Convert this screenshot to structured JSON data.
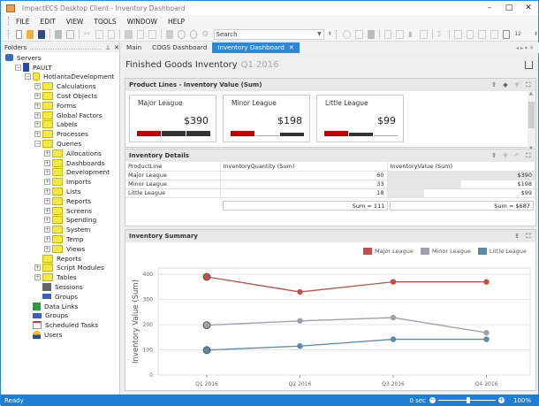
{
  "window": {
    "title": "ImpactECS Desktop Client - Inventory Dashboard",
    "controls": {
      "minimize": "–",
      "maximize": "□",
      "close": "✕"
    }
  },
  "menu": [
    "FILE",
    "EDIT",
    "VIEW",
    "TOOLS",
    "WINDOW",
    "HELP"
  ],
  "toolbar": {
    "search_placeholder": "Search",
    "icons": [
      "new-icon",
      "open-folder-icon",
      "save-icon",
      "print-icon",
      "print-preview-icon",
      "cut-icon",
      "copy-icon",
      "paste-icon",
      "import-icon",
      "export-icon",
      "export-alt-icon",
      "grid-icon",
      "play-icon",
      "stop-icon",
      "gear-icon"
    ],
    "right_icons": [
      "refresh-icon",
      "validate-icon",
      "run-icon",
      "tree-icon",
      "table-icon",
      "bar-chart-icon",
      "window-icon",
      "sum-icon",
      "query-icon",
      "datasource-icon",
      "copy-window-icon",
      "paste-window-icon",
      "layout-icon",
      "number-icon"
    ],
    "right_text": "12"
  },
  "folders": {
    "title": "Folders",
    "tree": [
      {
        "label": "Servers",
        "level": 0,
        "icon": "servers-icon",
        "exp": ""
      },
      {
        "label": "PAULT",
        "level": 1,
        "icon": "server-icon",
        "exp": "-"
      },
      {
        "label": "HotlantaDevelopment",
        "level": 2,
        "icon": "database-icon",
        "exp": "-"
      },
      {
        "label": "Calculations",
        "level": 3,
        "icon": "folder-icon",
        "exp": "+"
      },
      {
        "label": "Cost Objects",
        "level": 3,
        "icon": "folder-icon",
        "exp": "+"
      },
      {
        "label": "Forms",
        "level": 3,
        "icon": "folder-icon",
        "exp": "+"
      },
      {
        "label": "Global Factors",
        "level": 3,
        "icon": "folder-icon",
        "exp": "+"
      },
      {
        "label": "Labels",
        "level": 3,
        "icon": "folder-icon",
        "exp": "+"
      },
      {
        "label": "Processes",
        "level": 3,
        "icon": "folder-icon",
        "exp": "+"
      },
      {
        "label": "Queries",
        "level": 3,
        "icon": "folder-icon",
        "exp": "-"
      },
      {
        "label": "Allocations",
        "level": 4,
        "icon": "folder-icon",
        "exp": "+"
      },
      {
        "label": "Dashboards",
        "level": 4,
        "icon": "folder-icon",
        "exp": "+"
      },
      {
        "label": "Development",
        "level": 4,
        "icon": "folder-icon",
        "exp": "+"
      },
      {
        "label": "Imports",
        "level": 4,
        "icon": "folder-icon",
        "exp": "+"
      },
      {
        "label": "Lists",
        "level": 4,
        "icon": "folder-icon",
        "exp": "+"
      },
      {
        "label": "Reports",
        "level": 4,
        "icon": "folder-icon",
        "exp": "+"
      },
      {
        "label": "Screens",
        "level": 4,
        "icon": "folder-icon",
        "exp": "+"
      },
      {
        "label": "Spending",
        "level": 4,
        "icon": "folder-icon",
        "exp": "+"
      },
      {
        "label": "System",
        "level": 4,
        "icon": "folder-icon",
        "exp": "+"
      },
      {
        "label": "Temp",
        "level": 4,
        "icon": "folder-icon",
        "exp": "+"
      },
      {
        "label": "Views",
        "level": 4,
        "icon": "folder-icon",
        "exp": "+"
      },
      {
        "label": "Reports",
        "level": 3,
        "icon": "folder-icon",
        "exp": ""
      },
      {
        "label": "Script Modules",
        "level": 3,
        "icon": "folder-icon",
        "exp": "+"
      },
      {
        "label": "Tables",
        "level": 3,
        "icon": "folder-icon",
        "exp": "+"
      },
      {
        "label": "Sessions",
        "level": 3,
        "icon": "sessions-icon",
        "exp": ""
      },
      {
        "label": "Groups",
        "level": 3,
        "icon": "groups-icon",
        "exp": ""
      },
      {
        "label": "Data Links",
        "level": 2,
        "icon": "data-links-icon",
        "exp": ""
      },
      {
        "label": "Groups",
        "level": 2,
        "icon": "groups-icon",
        "exp": ""
      },
      {
        "label": "Scheduled Tasks",
        "level": 2,
        "icon": "scheduled-tasks-icon",
        "exp": ""
      },
      {
        "label": "Users",
        "level": 2,
        "icon": "users-icon",
        "exp": ""
      }
    ]
  },
  "tabs": [
    {
      "label": "Main",
      "active": false
    },
    {
      "label": "COGS Dashboard",
      "active": false
    },
    {
      "label": "Inventory Dashboard",
      "active": true
    }
  ],
  "dashboard": {
    "title": "Finished Goods Inventory",
    "period": "Q1 2016",
    "product_lines": {
      "title": "Product Lines - Inventory Value (Sum)",
      "cards": [
        {
          "name": "Major League",
          "value": "$390"
        },
        {
          "name": "Minor League",
          "value": "$198"
        },
        {
          "name": "Little League",
          "value": "$99"
        }
      ]
    },
    "details": {
      "title": "Inventory Details",
      "columns": [
        "ProductLine",
        "InventoryQuantity (Sum)",
        "InventoryValue (Sum)"
      ],
      "rows": [
        {
          "line": "Major League",
          "qty": "60",
          "value": "$390"
        },
        {
          "line": "Minor League",
          "qty": "33",
          "value": "$198"
        },
        {
          "line": "Little League",
          "qty": "18",
          "value": "$99"
        }
      ],
      "sum_qty": "Sum = 111",
      "sum_value": "Sum = $687"
    },
    "summary": {
      "title": "Inventory Summary"
    }
  },
  "chart_data": {
    "type": "line",
    "title": "Inventory Summary",
    "categories": [
      "Q1 2016",
      "Q2 2016",
      "Q3 2016",
      "Q4 2016"
    ],
    "series": [
      {
        "name": "Major League",
        "color": "#c0504d",
        "values": [
          390,
          330,
          370,
          370
        ]
      },
      {
        "name": "Minor League",
        "color": "#a0a0a8",
        "values": [
          198,
          215,
          228,
          168
        ]
      },
      {
        "name": "Little League",
        "color": "#5a8aa6",
        "values": [
          99,
          115,
          142,
          142
        ]
      }
    ],
    "xlabel": "",
    "ylabel": "Inventory Value (Sum)",
    "yticks": [
      0,
      100,
      200,
      300,
      400
    ],
    "ylim": [
      0,
      425
    ],
    "grid": true,
    "legend_position": "top-right"
  },
  "status": {
    "text": "Ready",
    "time": "0 sec",
    "zoom": "100%"
  },
  "colors": {
    "accent": "#2b88d8",
    "status_bar": "#1c7fd3",
    "bar_red": "#c00000",
    "bar_dark": "#333333",
    "bar_orange": "#e8a040"
  }
}
